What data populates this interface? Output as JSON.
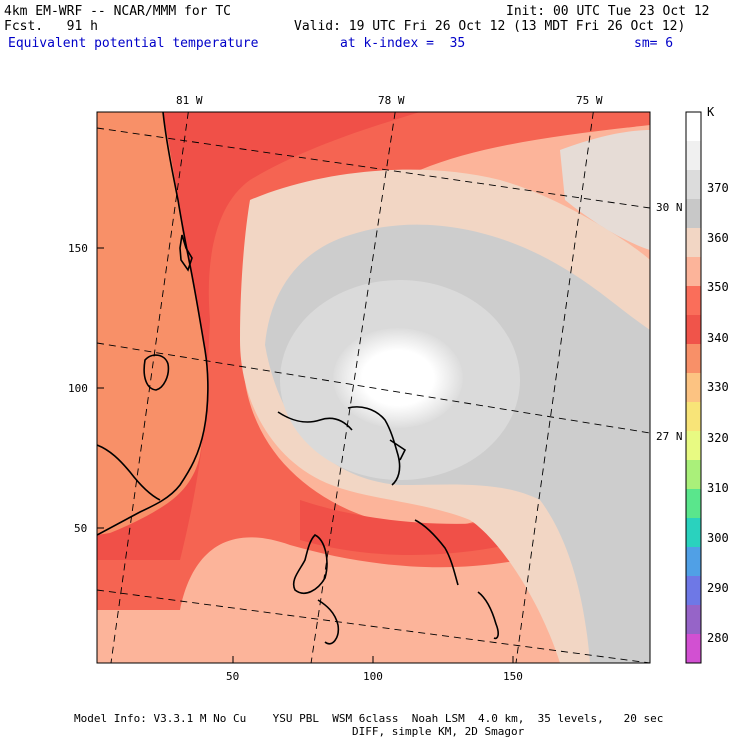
{
  "header": {
    "model": "4km EM-WRF -- NCAR/MMM for TC",
    "fcst": "Fcst.   91 h",
    "init": "Init: 00 UTC Tue 23 Oct 12",
    "valid": "Valid: 19 UTC Fri 26 Oct 12 (13 MDT Fri 26 Oct 12)",
    "field": "Equivalent potential temperature",
    "kindex": "at k-index =  35",
    "sm": "sm= 6"
  },
  "map": {
    "top_labels": [
      "81 W",
      "78 W",
      "75 W"
    ],
    "right_labels": [
      "30 N",
      "27 N"
    ],
    "x_ticks": [
      "50",
      "100",
      "150"
    ],
    "y_ticks": [
      "150",
      "100",
      "50"
    ],
    "features": [
      "Florida",
      "Grand Bahama",
      "Abaco",
      "Andros",
      "Eleuthera",
      "Long Island"
    ]
  },
  "colorbar": {
    "unit": "K",
    "labels": [
      "370",
      "360",
      "350",
      "340",
      "330",
      "320",
      "310",
      "300",
      "290",
      "280"
    ],
    "colors": [
      "#ffffff",
      "#f0f0f0",
      "#dcdcdc",
      "#c8c8c8",
      "#f2d6c4",
      "#fcb49a",
      "#fa6e5a",
      "#f0544a",
      "#f89068",
      "#fcc382",
      "#f8e478",
      "#e8fa82",
      "#aaf07a",
      "#5ae68c",
      "#2ad2be",
      "#50a0e6",
      "#6e78e6",
      "#9664c8",
      "#d250d2"
    ]
  },
  "footer": {
    "line1": "Model Info: V3.3.1 M No Cu    YSU PBL  WSM 6class  Noah LSM  4.0 km,  35 levels,   20 sec",
    "line2": "DIFF, simple KM, 2D Smagor"
  }
}
